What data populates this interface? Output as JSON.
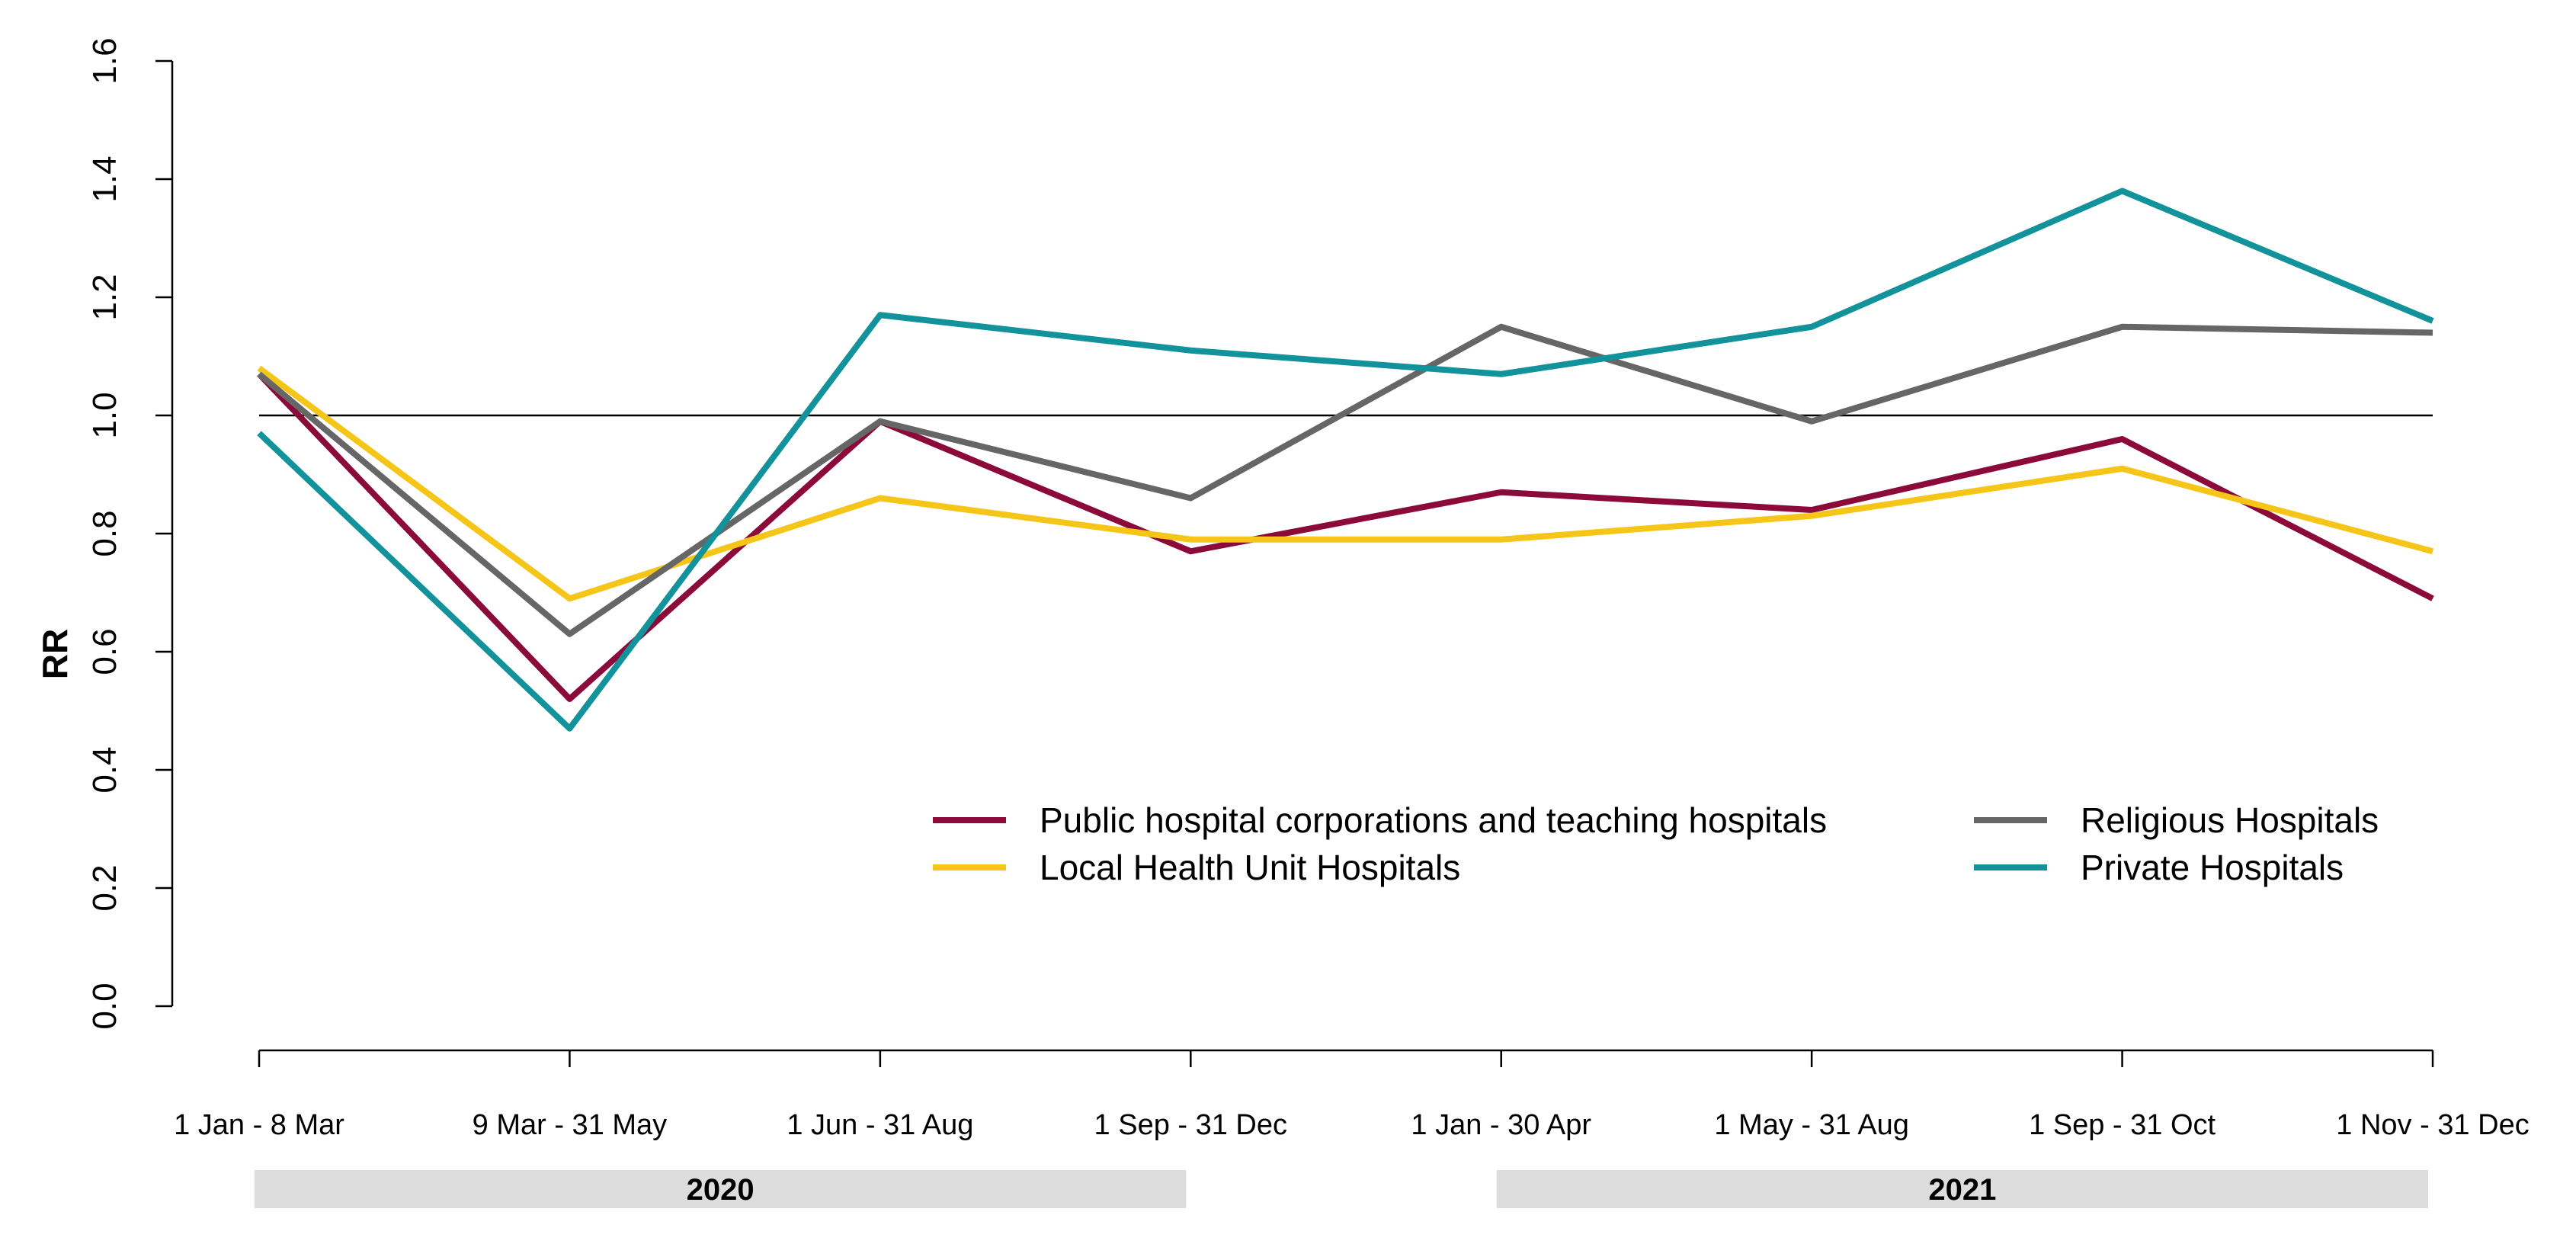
{
  "chart_data": {
    "type": "line",
    "title": "",
    "xlabel": "",
    "ylabel": "RR",
    "ylim": [
      0,
      1.6
    ],
    "yticks": [
      0.0,
      0.2,
      0.4,
      0.6,
      0.8,
      1.0,
      1.2,
      1.4,
      1.6
    ],
    "ytick_labels": [
      "0.0",
      "0.2",
      "0.4",
      "0.6",
      "0.8",
      "1.0",
      "1.2",
      "1.4",
      "1.6"
    ],
    "reference_line": 1.0,
    "categories": [
      "1 Jan - 8 Mar",
      "9 Mar - 31 May",
      "1 Jun - 31 Aug",
      "1 Sep - 31 Dec",
      "1 Jan - 30 Apr",
      "1 May - 31 Aug",
      "1 Sep - 31 Oct",
      "1 Nov - 31 Dec"
    ],
    "year_groups": [
      {
        "label": "2020",
        "start": 0,
        "end": 3
      },
      {
        "label": "2021",
        "start": 4,
        "end": 7
      }
    ],
    "series": [
      {
        "name": "Public hospital corporations and teaching hospitals",
        "color": "#8b0a3a",
        "values": [
          1.07,
          0.52,
          0.99,
          0.77,
          0.87,
          0.84,
          0.96,
          0.69
        ]
      },
      {
        "name": "Local Health Unit Hospitals",
        "color": "#f5c518",
        "values": [
          1.08,
          0.69,
          0.86,
          0.79,
          0.79,
          0.83,
          0.91,
          0.77
        ]
      },
      {
        "name": "Religious Hospitals",
        "color": "#666666",
        "values": [
          1.07,
          0.63,
          0.99,
          0.86,
          1.15,
          0.99,
          1.15,
          1.14
        ]
      },
      {
        "name": "Private Hospitals",
        "color": "#12929a",
        "values": [
          0.97,
          0.47,
          1.17,
          1.11,
          1.07,
          1.15,
          1.38,
          1.16
        ]
      }
    ],
    "legend_position": "bottom-right",
    "grid": false
  }
}
